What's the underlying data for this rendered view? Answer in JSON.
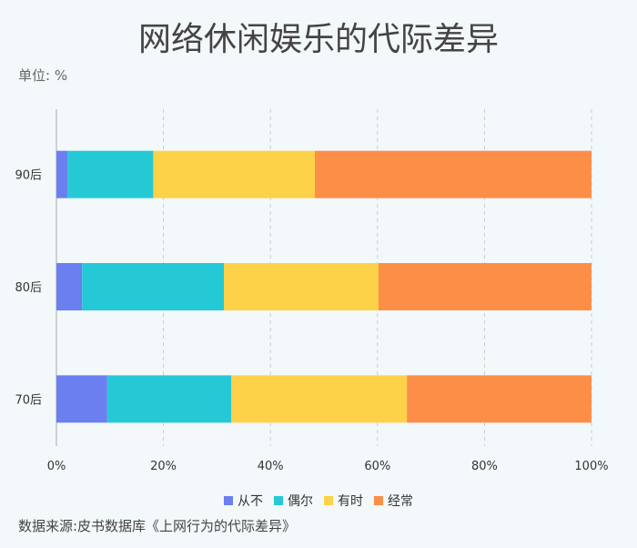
{
  "title": "网络休闲娱乐的代际差异",
  "unit": "单位: %",
  "source": "数据来源:皮书数据库《上网行为的代际差异》",
  "chart_data": {
    "type": "bar",
    "orientation": "horizontal",
    "stacked": true,
    "title": "网络休闲娱乐的代际差异",
    "categories": [
      "90后",
      "80后",
      "70后"
    ],
    "series": [
      {
        "name": "从不",
        "color": "#6b7ff0",
        "values": [
          2.1,
          4.8,
          9.5
        ]
      },
      {
        "name": "偶尔",
        "color": "#25c9d6",
        "values": [
          16.0,
          26.5,
          23.2
        ]
      },
      {
        "name": "有时",
        "color": "#fdd249",
        "values": [
          30.2,
          28.9,
          32.8
        ]
      },
      {
        "name": "经常",
        "color": "#fd8e48",
        "values": [
          51.7,
          39.8,
          34.5
        ]
      }
    ],
    "xlim": [
      0,
      100
    ],
    "xticks": [
      "0%",
      "20%",
      "40%",
      "60%",
      "80%",
      "100%"
    ],
    "grid": true,
    "legend": "bottom"
  }
}
